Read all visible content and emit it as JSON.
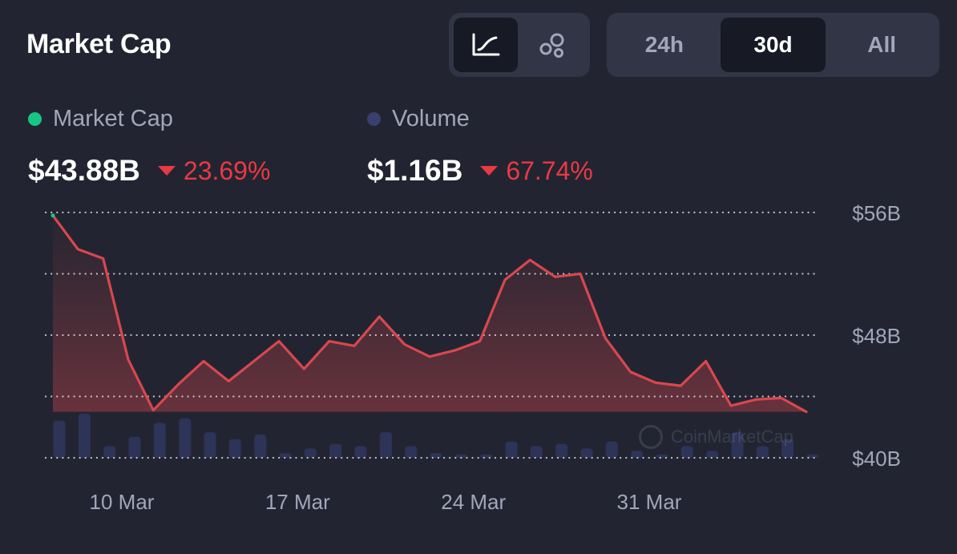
{
  "header": {
    "title": "Market Cap",
    "chart_type_buttons": [
      {
        "icon": "line-chart-icon",
        "active": true
      },
      {
        "icon": "bubbles-icon",
        "active": false
      }
    ],
    "range_tabs": [
      {
        "label": "24h",
        "active": false
      },
      {
        "label": "30d",
        "active": true
      },
      {
        "label": "All",
        "active": false
      }
    ]
  },
  "stats": {
    "market_cap": {
      "legend": "Market Cap",
      "value": "$43.88B",
      "change": "23.69%",
      "direction": "down",
      "dot_color": "#16c784"
    },
    "volume": {
      "legend": "Volume",
      "value": "$1.16B",
      "change": "67.74%",
      "direction": "down",
      "dot_color": "#3b3f6e"
    }
  },
  "colors": {
    "background": "#222531",
    "line": "#d9474e",
    "negative": "#ea3943",
    "volume_bar": "#2e3358",
    "muted_text": "#a1a7bb"
  },
  "watermark": "CoinMarketCap",
  "chart_data": {
    "type": "line",
    "series": [
      {
        "name": "Market Cap",
        "unit": "B USD",
        "values": [
          55.8,
          53.6,
          53.0,
          46.4,
          43.1,
          44.8,
          46.3,
          45.0,
          46.3,
          47.6,
          45.8,
          47.6,
          47.3,
          49.2,
          47.4,
          46.6,
          47.0,
          47.6,
          51.6,
          52.9,
          51.8,
          52.0,
          47.8,
          45.6,
          44.9,
          44.7,
          46.3,
          43.4,
          43.8,
          43.9,
          43.0
        ]
      },
      {
        "name": "Volume",
        "unit": "relative",
        "values": [
          0.8,
          0.95,
          0.25,
          0.45,
          0.75,
          0.85,
          0.55,
          0.4,
          0.5,
          0.1,
          0.2,
          0.3,
          0.25,
          0.55,
          0.25,
          0.1,
          0.0,
          0.05,
          0.35,
          0.25,
          0.3,
          0.2,
          0.35,
          0.15,
          0.0,
          0.25,
          0.15,
          0.55,
          0.25,
          0.4,
          0.0
        ]
      }
    ],
    "x_labels": [
      "10 Mar",
      "17 Mar",
      "24 Mar",
      "31 Mar"
    ],
    "x_label_indices": [
      3,
      10,
      17,
      24
    ],
    "y_ticks": [
      {
        "value": 56,
        "label": "$56B"
      },
      {
        "value": 48,
        "label": "$48B"
      },
      {
        "value": 40,
        "label": "$40B"
      }
    ],
    "gridlines": [
      56,
      52,
      48,
      44,
      40
    ],
    "ylim": [
      40,
      56
    ],
    "grid": true,
    "legend": "top-left"
  }
}
